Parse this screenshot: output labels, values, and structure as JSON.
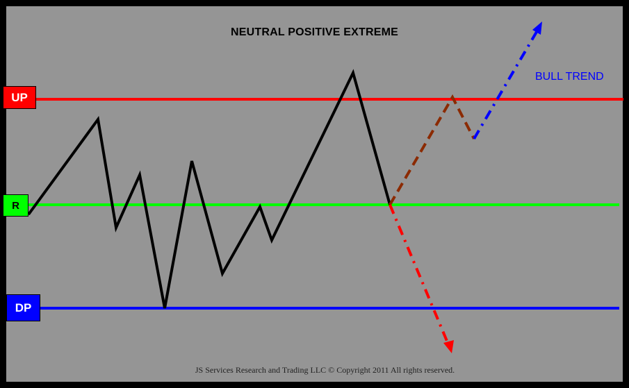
{
  "title": "NEUTRAL POSITIVE EXTREME",
  "bull_label": "BULL TREND",
  "footer": "JS Services Research and Trading LLC © Copyright 2011 All rights reserved.",
  "levels": {
    "up": {
      "label": "UP",
      "color": "#ff0000",
      "text_color": "#ffffff"
    },
    "r": {
      "label": "R",
      "color": "#00ff00",
      "text_color": "#000000"
    },
    "dp": {
      "label": "DP",
      "color": "#0000ff",
      "text_color": "#ffffff"
    }
  },
  "colors": {
    "background": "#959595",
    "frame": "#000000",
    "price_path": "#000000",
    "brown_path": "#8b2a00",
    "bull_path": "#0000ff",
    "bear_path": "#ff0000"
  }
}
